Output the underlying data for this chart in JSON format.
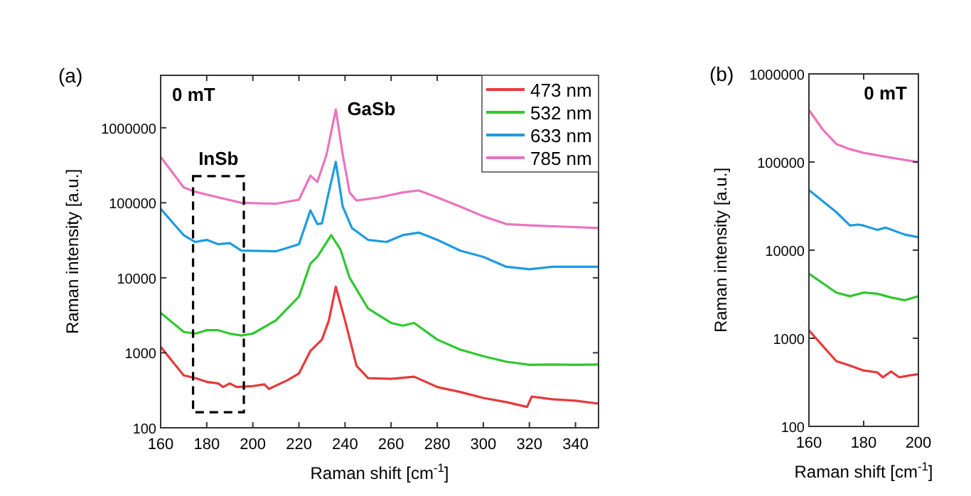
{
  "chart_data": [
    {
      "type": "line",
      "title": "(a)",
      "xlabel": "Raman shift [cm$^{-1}$]",
      "ylabel": "Raman intensity [a.u.]",
      "log": "y",
      "legend": "top right",
      "grid": false,
      "xlim": [
        160,
        350
      ],
      "xticks": [
        160,
        180,
        200,
        220,
        240,
        260,
        280,
        300,
        320,
        340
      ],
      "ylim": [
        100,
        5000000
      ],
      "yticks": [
        100,
        1000,
        10000,
        100000,
        1000000
      ],
      "annotations": [
        "0 mT",
        {
          "text": "GaSb",
          "x": 236,
          "y": 1750000
        },
        "InSb"
      ],
      "series": [
        {
          "name": "473 nm",
          "color": "#e8393b",
          "x": [
            160,
            170,
            175,
            180,
            185,
            187,
            190,
            193,
            200,
            205,
            207,
            215,
            220,
            225,
            230,
            233,
            236,
            240,
            245,
            250,
            260,
            270,
            280,
            290,
            300,
            310,
            319,
            321,
            330,
            340,
            350
          ],
          "values": [
            1200,
            500,
            460,
            410,
            390,
            350,
            390,
            350,
            360,
            380,
            330,
            430,
            530,
            1060,
            1500,
            2700,
            7600,
            2700,
            670,
            460,
            450,
            480,
            350,
            300,
            250,
            220,
            190,
            260,
            240,
            230,
            210
          ]
        },
        {
          "name": "532 nm",
          "color": "#2ec82e",
          "x": [
            160,
            170,
            175,
            180,
            185,
            190,
            195,
            200,
            210,
            220,
            225,
            228,
            234,
            238,
            242,
            250,
            260,
            265,
            270,
            280,
            290,
            300,
            310,
            320,
            330,
            340,
            350
          ],
          "values": [
            3400,
            1900,
            1800,
            2000,
            2000,
            1800,
            1700,
            1800,
            2700,
            5600,
            15500,
            19000,
            37000,
            24000,
            10000,
            3900,
            2500,
            2300,
            2500,
            1500,
            1100,
            900,
            760,
            690,
            700,
            690,
            700
          ]
        },
        {
          "name": "633 nm",
          "color": "#1e9be0",
          "x": [
            160,
            170,
            175,
            180,
            185,
            190,
            195,
            210,
            220,
            225,
            228,
            230,
            233,
            236,
            239,
            243,
            250,
            258,
            265,
            272,
            280,
            290,
            300,
            310,
            320,
            330,
            340,
            350
          ],
          "values": [
            83000,
            37000,
            30000,
            32000,
            28000,
            29000,
            23000,
            22500,
            28000,
            79000,
            52000,
            53000,
            140000,
            350000,
            89000,
            46000,
            32000,
            30000,
            37000,
            40000,
            32000,
            23000,
            19000,
            14000,
            13000,
            14000,
            14000,
            14000
          ]
        },
        {
          "name": "785 nm",
          "color": "#ec72c0",
          "x": [
            160,
            170,
            175,
            185,
            195,
            210,
            220,
            225,
            228,
            232,
            236,
            239,
            242,
            245,
            255,
            265,
            272,
            280,
            290,
            300,
            310,
            320,
            335,
            350
          ],
          "values": [
            410000,
            160000,
            140000,
            118000,
            100000,
            97000,
            110000,
            230000,
            190000,
            440000,
            1750000,
            440000,
            137000,
            107000,
            118000,
            137000,
            146000,
            118000,
            89000,
            66000,
            52000,
            50000,
            48000,
            46000
          ]
        }
      ]
    },
    {
      "type": "line",
      "title": "(b)",
      "xlabel": "Raman shift [cm$^{-1}$]",
      "ylabel": "Raman intensity [a.u.]",
      "log": "y",
      "grid": false,
      "xlim": [
        160,
        200
      ],
      "xticks": [
        160,
        180,
        200
      ],
      "ylim": [
        100,
        1000000
      ],
      "yticks": [
        100,
        1000,
        10000,
        100000,
        1000000
      ],
      "annotations": [
        "0 mT"
      ],
      "series": [
        {
          "color": "#e8393b",
          "x": [
            160,
            170,
            175,
            180,
            185,
            187,
            190,
            193,
            197,
            200
          ],
          "values": [
            1230,
            550,
            490,
            430,
            410,
            360,
            420,
            360,
            380,
            390
          ]
        },
        {
          "color": "#2ec82e",
          "x": [
            160,
            170,
            175,
            180,
            185,
            190,
            195,
            200
          ],
          "values": [
            5400,
            3300,
            3000,
            3300,
            3200,
            2900,
            2700,
            3000
          ]
        },
        {
          "color": "#1e9be0",
          "x": [
            160,
            170,
            175,
            178,
            180,
            185,
            188,
            195,
            200
          ],
          "values": [
            48000,
            27000,
            19000,
            19500,
            19000,
            17000,
            18000,
            15000,
            14000
          ]
        },
        {
          "color": "#ec72c0",
          "x": [
            160,
            165,
            170,
            175,
            180,
            190,
            200
          ],
          "values": [
            390000,
            235000,
            160000,
            140000,
            127000,
            112000,
            100000
          ]
        }
      ]
    }
  ]
}
